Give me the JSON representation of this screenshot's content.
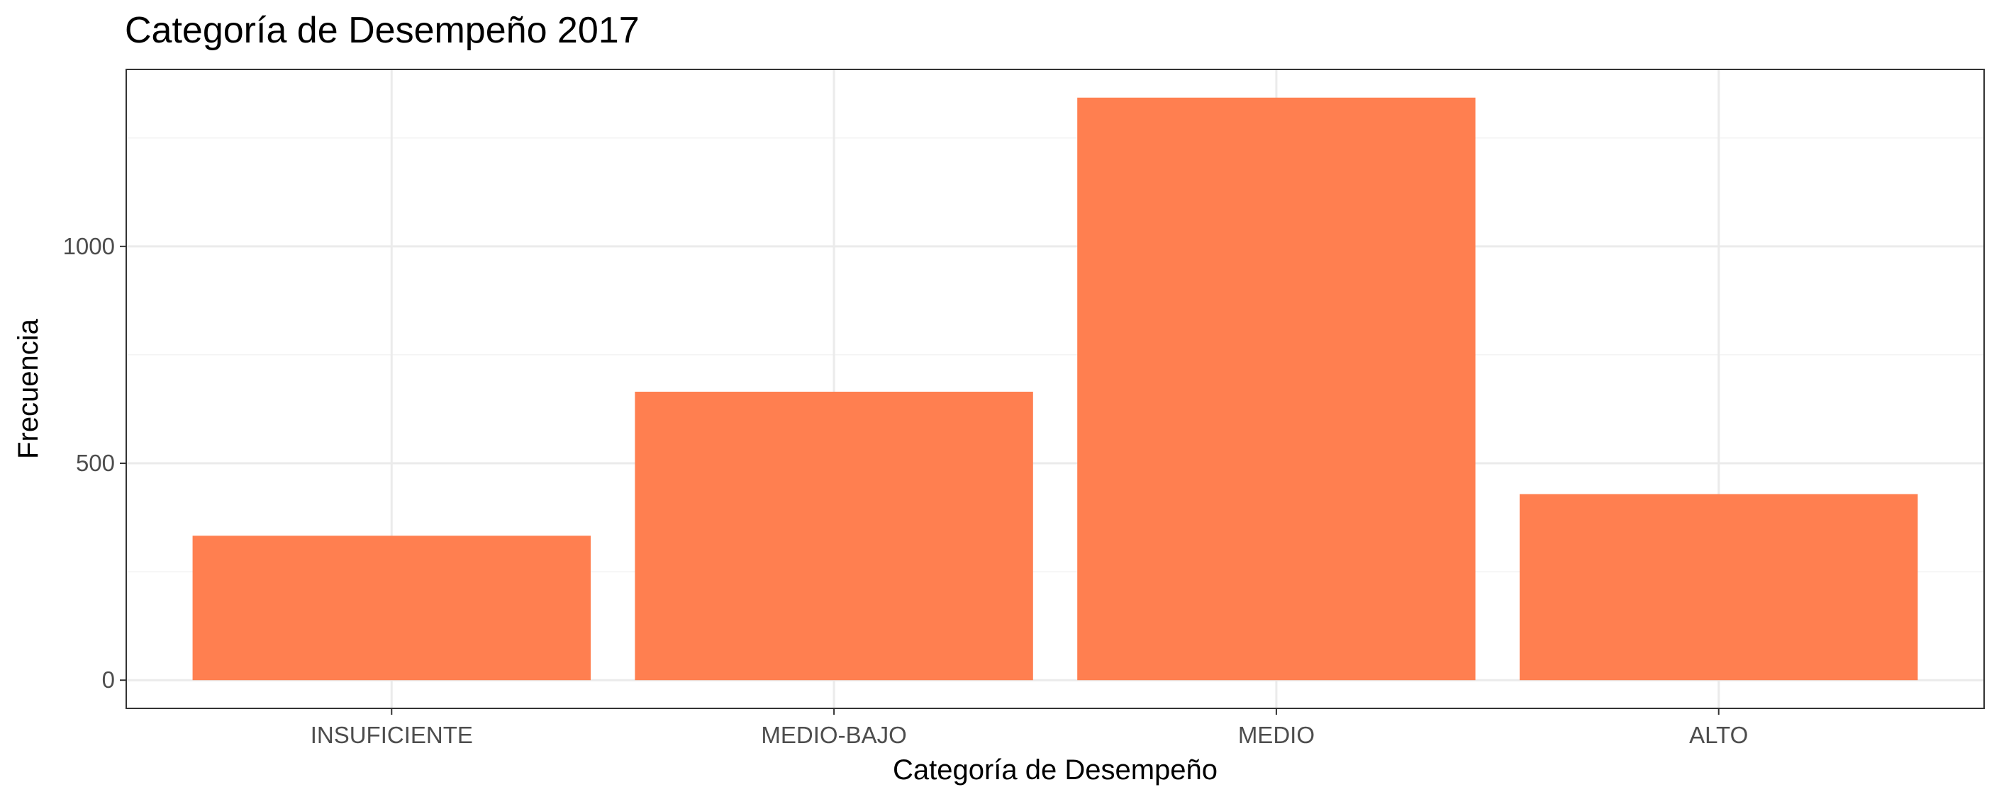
{
  "chart_data": {
    "type": "bar",
    "title": "Categoría de Desempeño 2017",
    "xlabel": "Categoría de Desempeño",
    "ylabel": "Frecuencia",
    "categories": [
      "INSUFICIENTE",
      "MEDIO-BAJO",
      "MEDIO",
      "ALTO"
    ],
    "values": [
      333,
      665,
      1343,
      429
    ],
    "ylim": [
      -65,
      1408
    ],
    "y_ticks": [
      0,
      500,
      1000
    ],
    "y_tick_labels": [
      "0",
      "500",
      "1000"
    ],
    "minor_y_ticks": [
      250,
      750,
      1250
    ],
    "grid": true,
    "legend": "none",
    "colors": {
      "bar": "#FF7F50",
      "grid_major": "#EBEBEB",
      "grid_minor": "#F3F3F3",
      "panel_border": "#333333",
      "tick_label": "#4D4D4D",
      "text": "#000000"
    }
  }
}
